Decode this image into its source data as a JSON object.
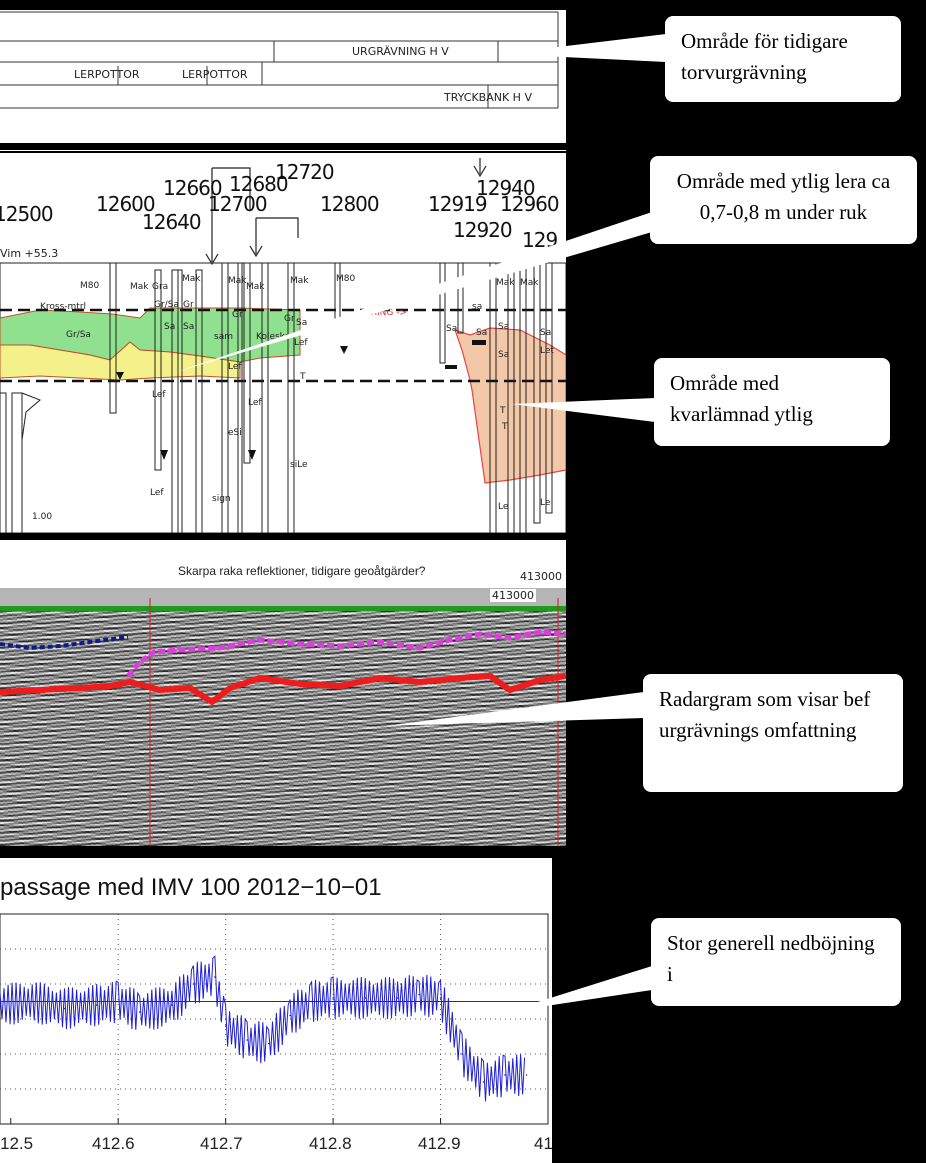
{
  "top_panel": {
    "labels": [
      "URGRÄVNING H V",
      "LERPOTTOR",
      "LERPOTTOR",
      "TRYCKBANK H V"
    ]
  },
  "section_panel": {
    "chainages": [
      "12500",
      "12600",
      "12640",
      "12660",
      "12680",
      "12700",
      "12720",
      "12800",
      "12919",
      "12920",
      "12940",
      "12960",
      "129"
    ],
    "level_label": "Vim  +55.3",
    "soil_labels": [
      "M80",
      "Mak",
      "Gra",
      "Mak",
      "Gr",
      "Sa",
      "Mak",
      "Mak",
      "Mak",
      "M80",
      "Kross-mtrl",
      "Gr/Sa",
      "Gr/Sa",
      "sam",
      "Gr",
      "Sa",
      "Koleska",
      "Gr",
      "Sa",
      "Lef",
      "Lef",
      "Lef",
      "Lef",
      "T",
      "eSi",
      "Lef",
      "siLe",
      "sign",
      "Mak",
      "Mak",
      "Sa",
      "sa",
      "Sa",
      "Sa",
      "Sa",
      "Sa",
      "Let",
      "T",
      "T",
      "Le",
      "Le",
      "1.00"
    ],
    "red_label": "LERING ->"
  },
  "radar_panel": {
    "header": "Skarpa raka reflektioner, tidigare geoåtgärder?",
    "header_number": "413000",
    "scale_number": "413000"
  },
  "chart_panel": {
    "chart_data": {
      "type": "line",
      "title": "passage med IMV 100 2012−10−01",
      "xlabel": "",
      "ylabel": "",
      "xlim": [
        412.49,
        413.0
      ],
      "x_ticks": [
        "12.5",
        "412.6",
        "412.7",
        "412.8",
        "412.9",
        "41"
      ],
      "grid": true,
      "series": [
        {
          "color": "#1f1fd6",
          "x": [
            412.49,
            412.52,
            412.55,
            412.58,
            412.6,
            412.62,
            412.65,
            412.67,
            412.69,
            412.7,
            412.72,
            412.74,
            412.76,
            412.78,
            412.8,
            412.83,
            412.86,
            412.88,
            412.9,
            412.92,
            412.94,
            412.96,
            412.98
          ],
          "y": [
            0.2,
            0.25,
            0.15,
            0.2,
            0.25,
            0.1,
            0.2,
            0.5,
            0.6,
            -0.1,
            -0.3,
            -0.35,
            0.05,
            0.25,
            0.3,
            0.3,
            0.3,
            0.35,
            0.3,
            -0.5,
            -0.9,
            -0.8,
            -0.8
          ]
        }
      ]
    }
  },
  "callouts": [
    {
      "text": "Område för tidigare torvurgrävning"
    },
    {
      "text": "Område med ytlig lera ca 0,7-0,8 m under ruk"
    },
    {
      "text": "Område med kvarlämnad ytlig"
    },
    {
      "text": "Radargram som visar bef urgrävnings omfattning"
    },
    {
      "text": "Stor generell nedböjning i"
    }
  ]
}
